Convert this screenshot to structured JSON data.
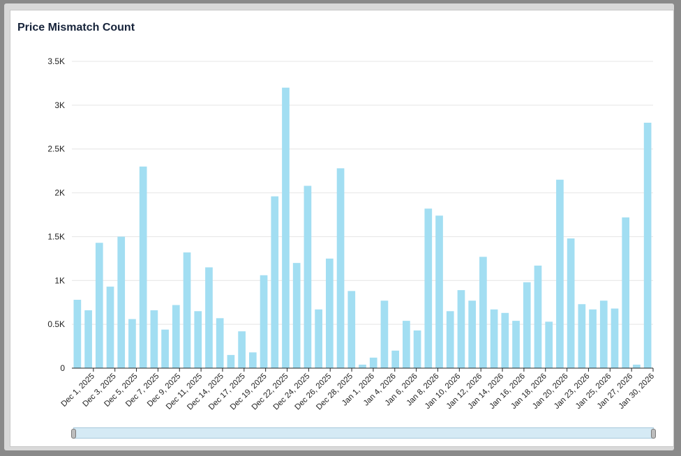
{
  "title": "Price Mismatch Count",
  "colors": {
    "bar": "#a2def2",
    "grid": "#e4e4e4",
    "axis": "#222222",
    "text": "#16233a"
  },
  "chart_data": {
    "type": "bar",
    "title": "Price Mismatch Count",
    "xlabel": "",
    "ylabel": "",
    "ylim": [
      0,
      3500
    ],
    "y_ticks": [
      {
        "value": 0,
        "label": "0"
      },
      {
        "value": 500,
        "label": "0.5K"
      },
      {
        "value": 1000,
        "label": "1K"
      },
      {
        "value": 1500,
        "label": "1.5K"
      },
      {
        "value": 2000,
        "label": "2K"
      },
      {
        "value": 2500,
        "label": "2.5K"
      },
      {
        "value": 3000,
        "label": "3K"
      },
      {
        "value": 3500,
        "label": "3.5K"
      }
    ],
    "grid": true,
    "x_tick_labels": [
      "Dec 1, 2025",
      "Dec 3, 2025",
      "Dec 5, 2025",
      "Dec 7, 2025",
      "Dec 9, 2025",
      "Dec 11, 2025",
      "Dec 14, 2025",
      "Dec 17, 2025",
      "Dec 19, 2025",
      "Dec 22, 2025",
      "Dec 24, 2025",
      "Dec 26, 2025",
      "Dec 28, 2025",
      "Jan 1, 2026",
      "Jan 4, 2026",
      "Jan 6, 2026",
      "Jan 8, 2026",
      "Jan 10, 2026",
      "Jan 12, 2026",
      "Jan 14, 2026",
      "Jan 16, 2026",
      "Jan 18, 2026",
      "Jan 20, 2026",
      "Jan 23, 2026",
      "Jan 25, 2026",
      "Jan 27, 2026",
      "Jan 30, 2026"
    ],
    "values": [
      780,
      660,
      1430,
      930,
      1500,
      560,
      2300,
      660,
      440,
      720,
      1320,
      650,
      1150,
      570,
      150,
      420,
      180,
      1060,
      1960,
      3200,
      1200,
      2080,
      670,
      1250,
      2280,
      880,
      40,
      120,
      770,
      200,
      540,
      430,
      1820,
      1740,
      650,
      890,
      770,
      1270,
      670,
      630,
      540,
      980,
      1170,
      530,
      2150,
      1480,
      730,
      670,
      770,
      680,
      1720,
      40,
      2800
    ]
  },
  "scrollbar": {
    "range": [
      0,
      1
    ]
  }
}
